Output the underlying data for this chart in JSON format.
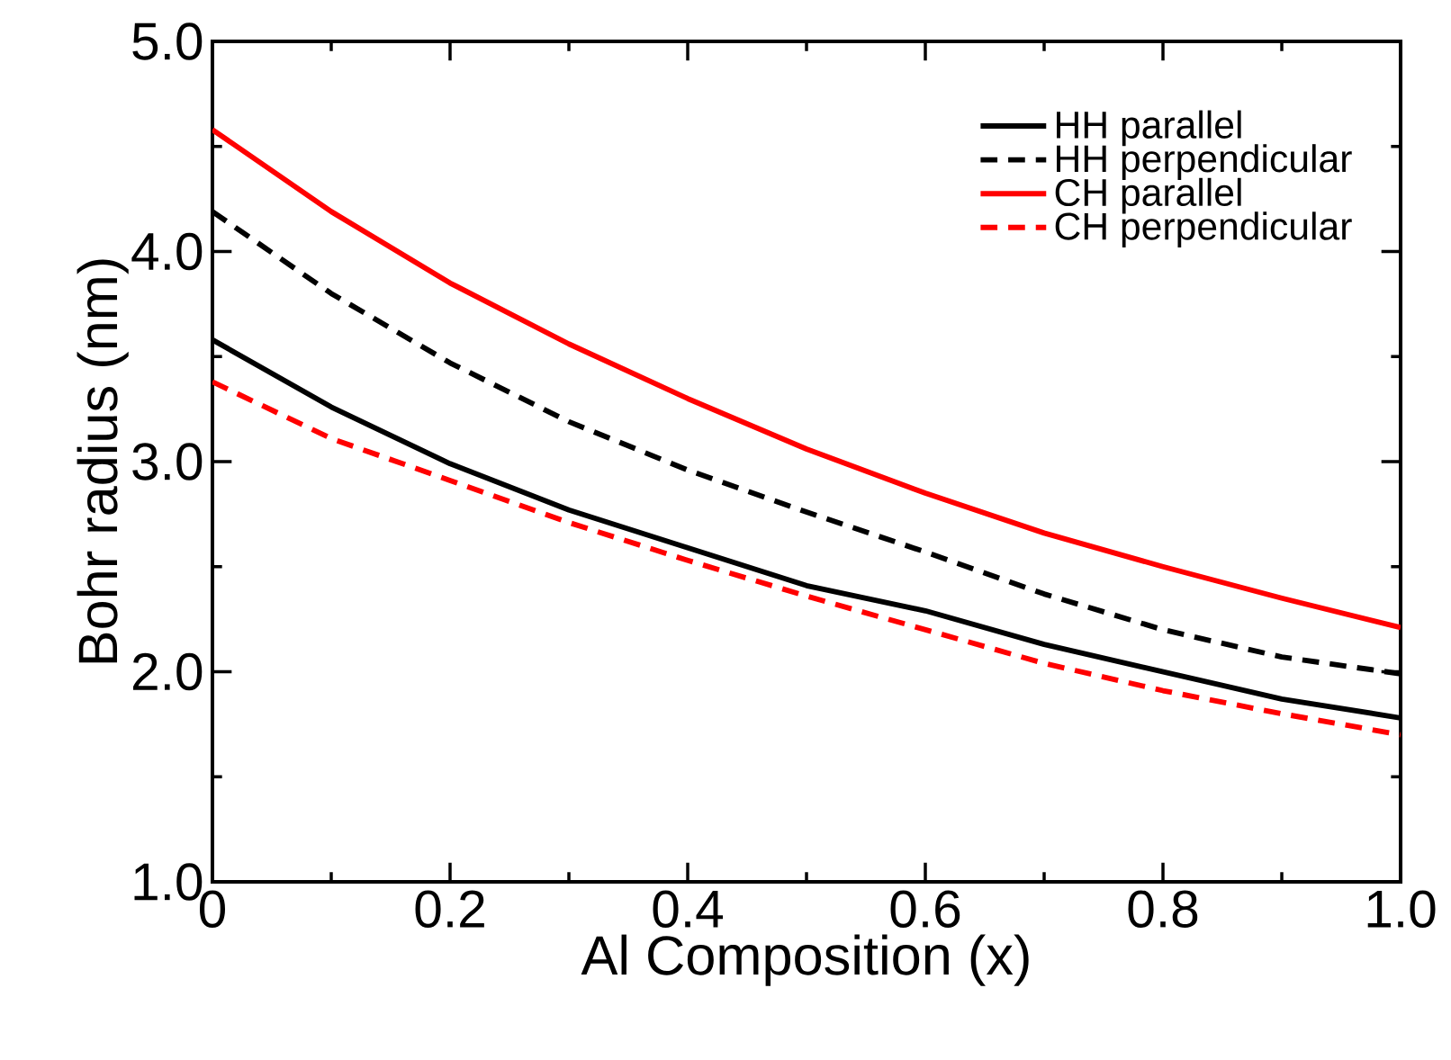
{
  "chart_data": {
    "type": "line",
    "xlabel": "Al Composition (x)",
    "ylabel": "Bohr radius (nm)",
    "x": [
      0,
      0.1,
      0.2,
      0.3,
      0.4,
      0.5,
      0.6,
      0.7,
      0.8,
      0.9,
      1.0
    ],
    "series": [
      {
        "name": "HH parallel",
        "color": "#000000",
        "line_style": "solid",
        "values": [
          3.58,
          3.26,
          2.99,
          2.77,
          2.59,
          2.41,
          2.29,
          2.13,
          2.0,
          1.87,
          1.78
        ]
      },
      {
        "name": "HH perpendicular",
        "color": "#000000",
        "line_style": "dashed",
        "values": [
          4.19,
          3.8,
          3.47,
          3.19,
          2.96,
          2.76,
          2.57,
          2.37,
          2.2,
          2.07,
          1.99
        ]
      },
      {
        "name": "CH parallel",
        "color": "#ff0000",
        "line_style": "solid",
        "values": [
          4.58,
          4.19,
          3.85,
          3.56,
          3.3,
          3.06,
          2.85,
          2.66,
          2.5,
          2.35,
          2.21
        ]
      },
      {
        "name": "CH perpendicular",
        "color": "#ff0000",
        "line_style": "dashed",
        "values": [
          3.38,
          3.11,
          2.91,
          2.71,
          2.53,
          2.36,
          2.2,
          2.04,
          1.91,
          1.8,
          1.7
        ]
      }
    ],
    "xlim": [
      0,
      1.0
    ],
    "ylim": [
      1.0,
      5.0
    ],
    "xticks": [
      0,
      0.2,
      0.4,
      0.6,
      0.8,
      {
        "value": 1.0,
        "label": "1.0"
      }
    ],
    "yticks": [
      {
        "value": 1.0,
        "label": "1.0"
      },
      {
        "value": 2.0,
        "label": "2.0"
      },
      {
        "value": 3.0,
        "label": "3.0"
      },
      {
        "value": 4.0,
        "label": "4.0"
      },
      {
        "value": 5.0,
        "label": "5.0"
      }
    ],
    "grid": false,
    "legend": "top right",
    "marker": "none"
  }
}
